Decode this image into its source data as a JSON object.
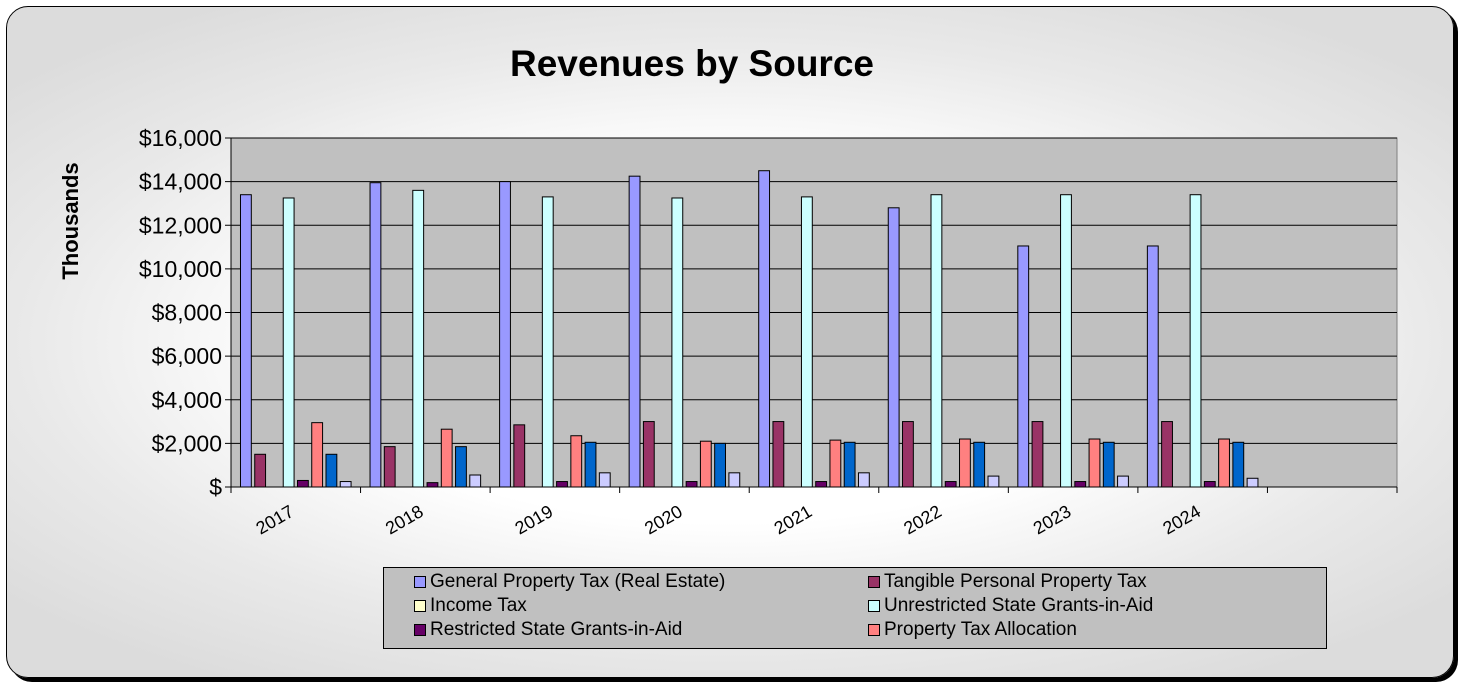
{
  "chart_data": {
    "type": "bar",
    "title": "Revenues by Source",
    "xlabel": "",
    "ylabel": "Thousands",
    "ylim": [
      0,
      16000
    ],
    "y_ticks": [
      "$",
      "$2,000",
      "$4,000",
      "$6,000",
      "$8,000",
      "$10,000",
      "$12,000",
      "$14,000",
      "$16,000"
    ],
    "categories": [
      "2017",
      "2018",
      "2019",
      "2020",
      "2021",
      "2022",
      "2023",
      "2024",
      ""
    ],
    "grid": true,
    "plot_background": "#c0c0c0",
    "legend_position": "bottom",
    "series": [
      {
        "name": "General Property Tax (Real Estate)",
        "color": "#9999ff",
        "values": [
          13400,
          13950,
          14000,
          14250,
          14500,
          12800,
          11050,
          11050,
          null
        ]
      },
      {
        "name": "Tangible Personal Property Tax",
        "color": "#993366",
        "values": [
          1500,
          1850,
          2850,
          3000,
          3000,
          3000,
          3000,
          3000,
          null
        ]
      },
      {
        "name": "Income Tax",
        "color": "#ffffcc",
        "values": [
          0,
          0,
          0,
          0,
          0,
          0,
          0,
          0,
          null
        ]
      },
      {
        "name": "Unrestricted State Grants-in-Aid",
        "color": "#ccffff",
        "values": [
          13250,
          13600,
          13300,
          13250,
          13300,
          13400,
          13400,
          13400,
          null
        ]
      },
      {
        "name": "Restricted State Grants-in-Aid",
        "color": "#660066",
        "values": [
          300,
          200,
          250,
          250,
          250,
          250,
          250,
          250,
          null
        ]
      },
      {
        "name": "Property Tax Allocation",
        "color": "#ff8080",
        "values": [
          2950,
          2650,
          2350,
          2100,
          2150,
          2200,
          2200,
          2200,
          null
        ]
      },
      {
        "name": "",
        "color": "#0066cc",
        "values": [
          1500,
          1850,
          2050,
          2000,
          2050,
          2050,
          2050,
          2050,
          null
        ]
      },
      {
        "name": "",
        "color": "#ccccff",
        "values": [
          250,
          550,
          650,
          650,
          650,
          500,
          500,
          400,
          null
        ]
      }
    ],
    "legend": [
      {
        "label": "General Property Tax (Real Estate)",
        "color": "#9999ff"
      },
      {
        "label": "Tangible Personal Property Tax",
        "color": "#993366"
      },
      {
        "label": "Income Tax",
        "color": "#ffffcc"
      },
      {
        "label": "Unrestricted State Grants-in-Aid",
        "color": "#ccffff"
      },
      {
        "label": "Restricted State Grants-in-Aid",
        "color": "#660066"
      },
      {
        "label": "Property Tax Allocation",
        "color": "#ff8080"
      }
    ]
  }
}
